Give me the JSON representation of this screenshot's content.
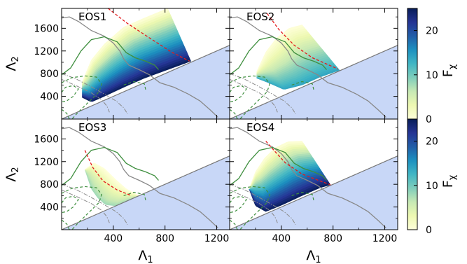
{
  "chart_data": {
    "type": "area",
    "figure": "2x2 grid of Lambda1-Lambda2 panels with shared colorbars",
    "xlabel": "Λ",
    "xlabel_sub": "1",
    "ylabel": "Λ",
    "ylabel_sub": "2",
    "xlim": [
      0,
      1300
    ],
    "ylim": [
      0,
      1950
    ],
    "xticks": [
      400,
      800,
      1200
    ],
    "yticks": [
      400,
      800,
      1200,
      1600
    ],
    "colorbar": {
      "label": "F",
      "label_sub": "χ",
      "range": [
        0,
        25
      ],
      "ticks": [
        0,
        10,
        20
      ],
      "colormap": "YlGnBu",
      "colors": [
        "#ffffd9",
        "#edf8b1",
        "#c7e9b4",
        "#7fcdbb",
        "#41b6c4",
        "#1d91c0",
        "#225ea8",
        "#253494",
        "#081d58"
      ]
    },
    "colors": {
      "excluded_region": "#c8d7f7",
      "boundary_line": "#777777",
      "green_contour": "#3f8f3f",
      "dashed_red": "#e41a1c",
      "gray_contour": "#888888",
      "dashdot": "#8a8a8a"
    },
    "boundary": {
      "description": "Λ2 = Λ1",
      "x": [
        0,
        1300
      ],
      "y": [
        0,
        1300
      ]
    },
    "green_solid": [
      {
        "x": 0,
        "y": 780
      },
      {
        "x": 70,
        "y": 900
      },
      {
        "x": 150,
        "y": 1200
      },
      {
        "x": 230,
        "y": 1400
      },
      {
        "x": 330,
        "y": 1450
      },
      {
        "x": 430,
        "y": 1360
      },
      {
        "x": 500,
        "y": 1170
      },
      {
        "x": 570,
        "y": 1080
      },
      {
        "x": 650,
        "y": 1020
      },
      {
        "x": 720,
        "y": 950
      },
      {
        "x": 750,
        "y": 870
      }
    ],
    "green_dashed_outer": [
      {
        "x": 0,
        "y": 640
      },
      {
        "x": 80,
        "y": 730
      },
      {
        "x": 180,
        "y": 760
      },
      {
        "x": 270,
        "y": 740
      },
      {
        "x": 310,
        "y": 620
      },
      {
        "x": 290,
        "y": 480
      },
      {
        "x": 200,
        "y": 280
      },
      {
        "x": 120,
        "y": 100
      },
      {
        "x": 80,
        "y": 0
      }
    ],
    "green_dashed_inner": [
      {
        "x": 0,
        "y": 470
      },
      {
        "x": 30,
        "y": 560
      },
      {
        "x": 90,
        "y": 590
      },
      {
        "x": 130,
        "y": 530
      },
      {
        "x": 90,
        "y": 400
      },
      {
        "x": 40,
        "y": 320
      },
      {
        "x": 0,
        "y": 300
      }
    ],
    "green_dashed_small": [
      {
        "x": 480,
        "y": 600
      },
      {
        "x": 560,
        "y": 660
      },
      {
        "x": 640,
        "y": 620
      },
      {
        "x": 650,
        "y": 520
      }
    ],
    "green_dashed_corner": [
      {
        "x": 0,
        "y": 170
      },
      {
        "x": 40,
        "y": 100
      },
      {
        "x": 60,
        "y": 0
      }
    ],
    "gray_solid": [
      {
        "x": 0,
        "y": 1780
      },
      {
        "x": 60,
        "y": 1800
      },
      {
        "x": 130,
        "y": 1720
      },
      {
        "x": 230,
        "y": 1560
      },
      {
        "x": 330,
        "y": 1460
      },
      {
        "x": 400,
        "y": 1340
      },
      {
        "x": 450,
        "y": 1200
      },
      {
        "x": 480,
        "y": 1060
      },
      {
        "x": 520,
        "y": 950
      },
      {
        "x": 600,
        "y": 870
      },
      {
        "x": 680,
        "y": 780
      },
      {
        "x": 760,
        "y": 640
      },
      {
        "x": 870,
        "y": 560
      },
      {
        "x": 980,
        "y": 440
      },
      {
        "x": 1070,
        "y": 320
      },
      {
        "x": 1150,
        "y": 160
      },
      {
        "x": 1210,
        "y": 30
      }
    ],
    "gray_dashdot": [
      {
        "x": 0,
        "y": 800
      },
      {
        "x": 100,
        "y": 720
      },
      {
        "x": 220,
        "y": 580
      },
      {
        "x": 330,
        "y": 440
      },
      {
        "x": 420,
        "y": 320
      },
      {
        "x": 480,
        "y": 200
      },
      {
        "x": 510,
        "y": 90
      }
    ],
    "gray_dashdot2": [
      {
        "x": 0,
        "y": 700
      },
      {
        "x": 120,
        "y": 580
      },
      {
        "x": 230,
        "y": 460
      },
      {
        "x": 310,
        "y": 340
      },
      {
        "x": 350,
        "y": 230
      },
      {
        "x": 370,
        "y": 120
      }
    ],
    "panels": [
      {
        "label": "EOS1",
        "band": {
          "lower_edge": [
            [
              160,
              380
            ],
            [
              230,
              300
            ],
            [
              330,
              400
            ],
            [
              480,
              560
            ],
            [
              640,
              720
            ],
            [
              820,
              870
            ],
            [
              1000,
              1020
            ]
          ],
          "upper_edge": [
            [
              160,
              660
            ],
            [
              230,
              1040
            ],
            [
              330,
              1320
            ],
            [
              480,
              1620
            ],
            [
              640,
              1780
            ],
            [
              820,
              1950
            ]
          ],
          "end_cap": [
            [
              820,
              1950
            ],
            [
              1000,
              1020
            ]
          ],
          "value_lower": 25,
          "value_upper": 0
        },
        "red_dashed": [
          {
            "x": 360,
            "y": 1950
          },
          {
            "x": 500,
            "y": 1700
          },
          {
            "x": 700,
            "y": 1400
          },
          {
            "x": 850,
            "y": 1180
          },
          {
            "x": 990,
            "y": 1020
          }
        ]
      },
      {
        "label": "EOS2",
        "band": {
          "lower_edge": [
            [
              210,
              720
            ],
            [
              300,
              640
            ],
            [
              420,
              520
            ],
            [
              560,
              600
            ],
            [
              700,
              740
            ],
            [
              850,
              860
            ]
          ],
          "upper_edge": [
            [
              210,
              840
            ],
            [
              280,
              1180
            ],
            [
              360,
              1420
            ],
            [
              460,
              1600
            ],
            [
              560,
              1660
            ]
          ],
          "end_cap": [
            [
              560,
              1660
            ],
            [
              850,
              860
            ]
          ],
          "value_lower": 14,
          "value_upper": 0
        },
        "red_dashed": [
          {
            "x": 290,
            "y": 1860
          },
          {
            "x": 380,
            "y": 1580
          },
          {
            "x": 500,
            "y": 1300
          },
          {
            "x": 640,
            "y": 1080
          },
          {
            "x": 840,
            "y": 880
          }
        ]
      },
      {
        "label": "EOS3",
        "band": {
          "lower_edge": [
            [
              180,
              1060
            ],
            [
              230,
              720
            ],
            [
              280,
              560
            ],
            [
              340,
              440
            ],
            [
              420,
              420
            ],
            [
              520,
              520
            ],
            [
              600,
              600
            ]
          ],
          "upper_edge": [
            [
              180,
              1060
            ],
            [
              250,
              1180
            ],
            [
              330,
              1080
            ],
            [
              420,
              880
            ],
            [
              500,
              720
            ],
            [
              600,
              600
            ]
          ],
          "end_cap": [
            [
              600,
              600
            ],
            [
              600,
              600
            ]
          ],
          "value_lower": 8,
          "value_upper": 0
        },
        "red_dashed": [
          {
            "x": 180,
            "y": 1400
          },
          {
            "x": 240,
            "y": 1100
          },
          {
            "x": 320,
            "y": 860
          },
          {
            "x": 430,
            "y": 700
          },
          {
            "x": 540,
            "y": 600
          }
        ]
      },
      {
        "label": "EOS4",
        "band": {
          "lower_edge": [
            [
              150,
              720
            ],
            [
              200,
              420
            ],
            [
              280,
              320
            ],
            [
              400,
              430
            ],
            [
              560,
              600
            ],
            [
              700,
              740
            ],
            [
              780,
              790
            ]
          ],
          "upper_edge": [
            [
              150,
              720
            ],
            [
              200,
              1020
            ],
            [
              270,
              1260
            ],
            [
              350,
              1440
            ],
            [
              450,
              1550
            ],
            [
              560,
              1560
            ]
          ],
          "end_cap": [
            [
              560,
              1560
            ],
            [
              780,
              790
            ]
          ],
          "value_lower": 25,
          "value_upper": 0
        },
        "red_dashed": [
          {
            "x": 280,
            "y": 1560
          },
          {
            "x": 350,
            "y": 1380
          },
          {
            "x": 430,
            "y": 1180
          },
          {
            "x": 560,
            "y": 980
          },
          {
            "x": 710,
            "y": 850
          },
          {
            "x": 780,
            "y": 790
          }
        ]
      }
    ]
  }
}
